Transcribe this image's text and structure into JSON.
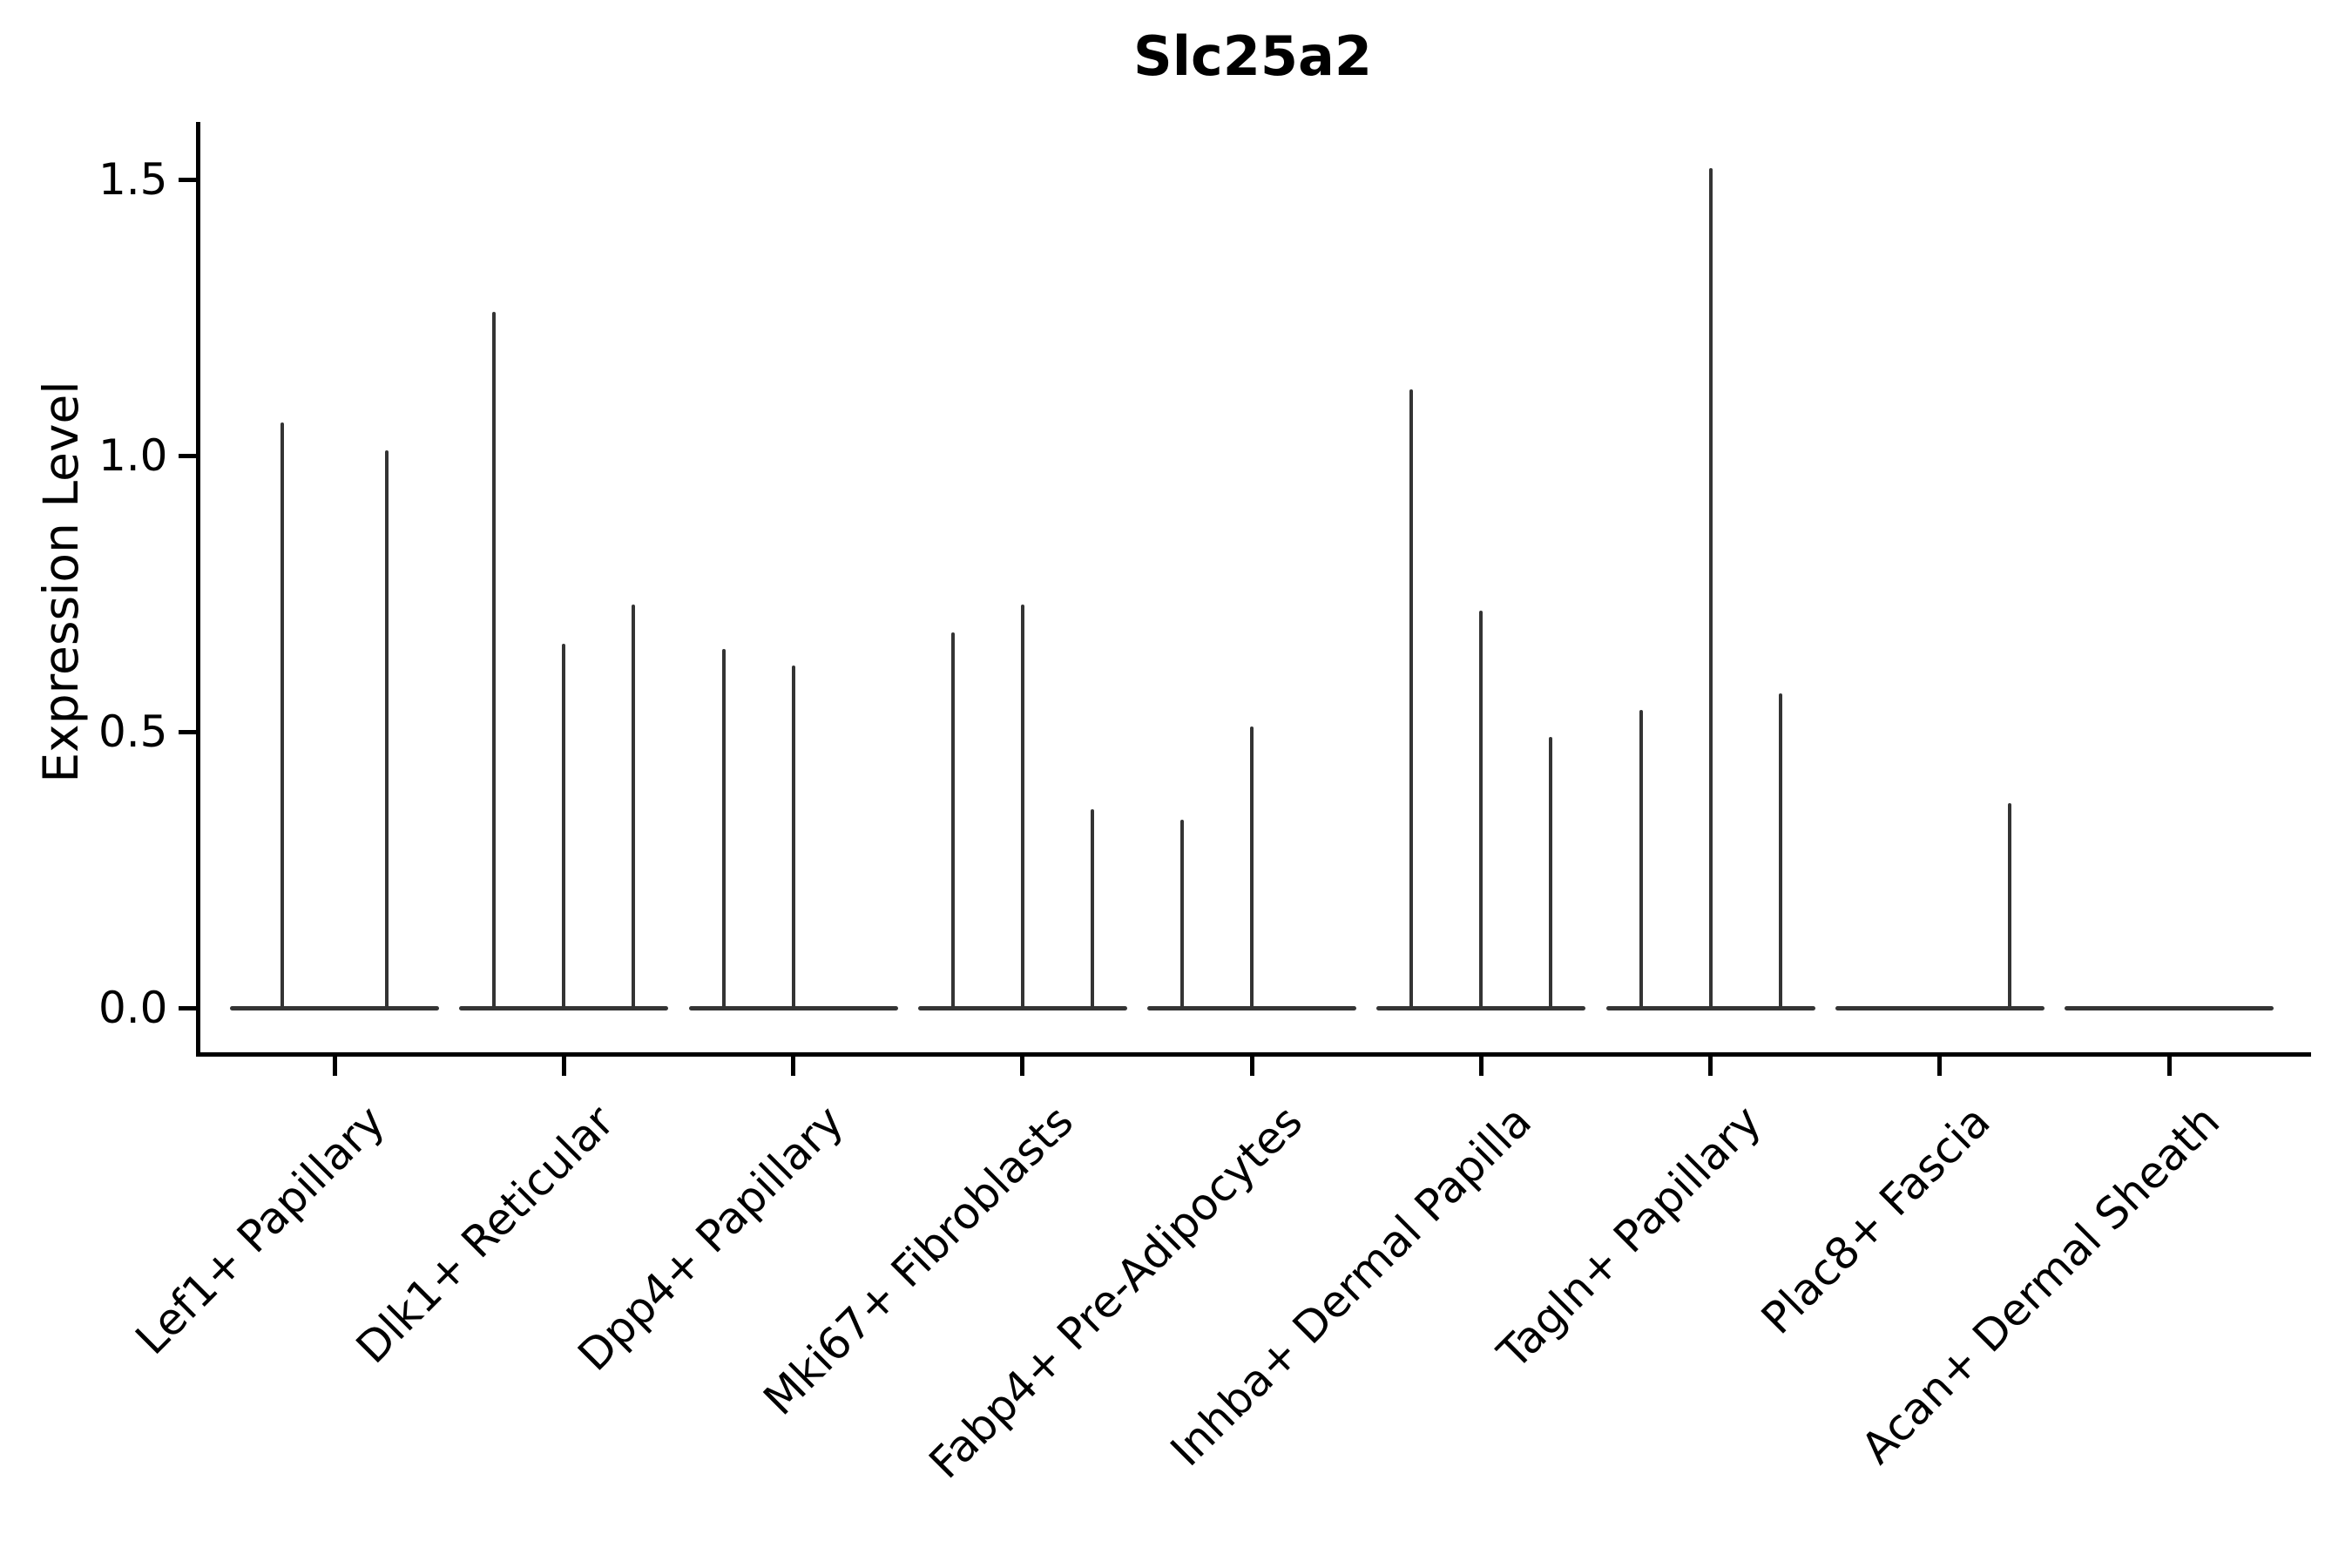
{
  "figure": {
    "title": "Slc25a2"
  },
  "axes": {
    "ylabel": "Expression Level",
    "ytick_labels": [
      "0.0",
      "0.5",
      "1.0",
      "1.5"
    ]
  },
  "colors": {
    "violin": "#343434",
    "axis": "#000000",
    "background": "#ffffff"
  },
  "chart_data": {
    "type": "violin",
    "title": "Slc25a2",
    "xlabel": "",
    "ylabel": "Expression Level",
    "ylim": [
      -0.08,
      1.6
    ],
    "yticks": [
      0,
      0.5,
      1.0,
      1.5
    ],
    "grid": false,
    "legend": null,
    "categories": [
      "Lef1+ Papillary",
      "Dlk1+ Reticular",
      "Dpp4+ Papillary",
      "Mki67+ Fibroblasts",
      "Fabp4+ Pre-Adipocytes",
      "Inhba+ Dermal Papilla",
      "Tagln+ Papillary",
      "Plac8+ Fascia",
      "Acan+ Dermal Sheath"
    ],
    "baseline_value": 0,
    "violins": [
      {
        "category": "Lef1+ Papillary",
        "slots": 2,
        "maxima": [
          {
            "slot": 0,
            "max": 1.06
          },
          {
            "slot": 1,
            "max": 1.01
          }
        ]
      },
      {
        "category": "Dlk1+ Reticular",
        "slots": 3,
        "maxima": [
          {
            "slot": 0,
            "max": 1.26
          },
          {
            "slot": 1,
            "max": 0.66
          },
          {
            "slot": 2,
            "max": 0.73
          }
        ]
      },
      {
        "category": "Dpp4+ Papillary",
        "slots": 3,
        "maxima": [
          {
            "slot": 0,
            "max": 0.65
          },
          {
            "slot": 1,
            "max": 0.62
          }
        ]
      },
      {
        "category": "Mki67+ Fibroblasts",
        "slots": 3,
        "maxima": [
          {
            "slot": 0,
            "max": 0.68
          },
          {
            "slot": 1,
            "max": 0.73
          },
          {
            "slot": 2,
            "max": 0.36
          }
        ]
      },
      {
        "category": "Fabp4+ Pre-Adipocytes",
        "slots": 3,
        "maxima": [
          {
            "slot": 0,
            "max": 0.34
          },
          {
            "slot": 1,
            "max": 0.51
          }
        ]
      },
      {
        "category": "Inhba+ Dermal Papilla",
        "slots": 3,
        "maxima": [
          {
            "slot": 0,
            "max": 1.12
          },
          {
            "slot": 1,
            "max": 0.72
          },
          {
            "slot": 2,
            "max": 0.49
          }
        ]
      },
      {
        "category": "Tagln+ Papillary",
        "slots": 3,
        "maxima": [
          {
            "slot": 0,
            "max": 0.54
          },
          {
            "slot": 1,
            "max": 1.52
          },
          {
            "slot": 2,
            "max": 0.57
          }
        ]
      },
      {
        "category": "Plac8+ Fascia",
        "slots": 3,
        "maxima": [
          {
            "slot": 2,
            "max": 0.37
          }
        ]
      },
      {
        "category": "Acan+ Dermal Sheath",
        "slots": 3,
        "maxima": []
      }
    ]
  }
}
